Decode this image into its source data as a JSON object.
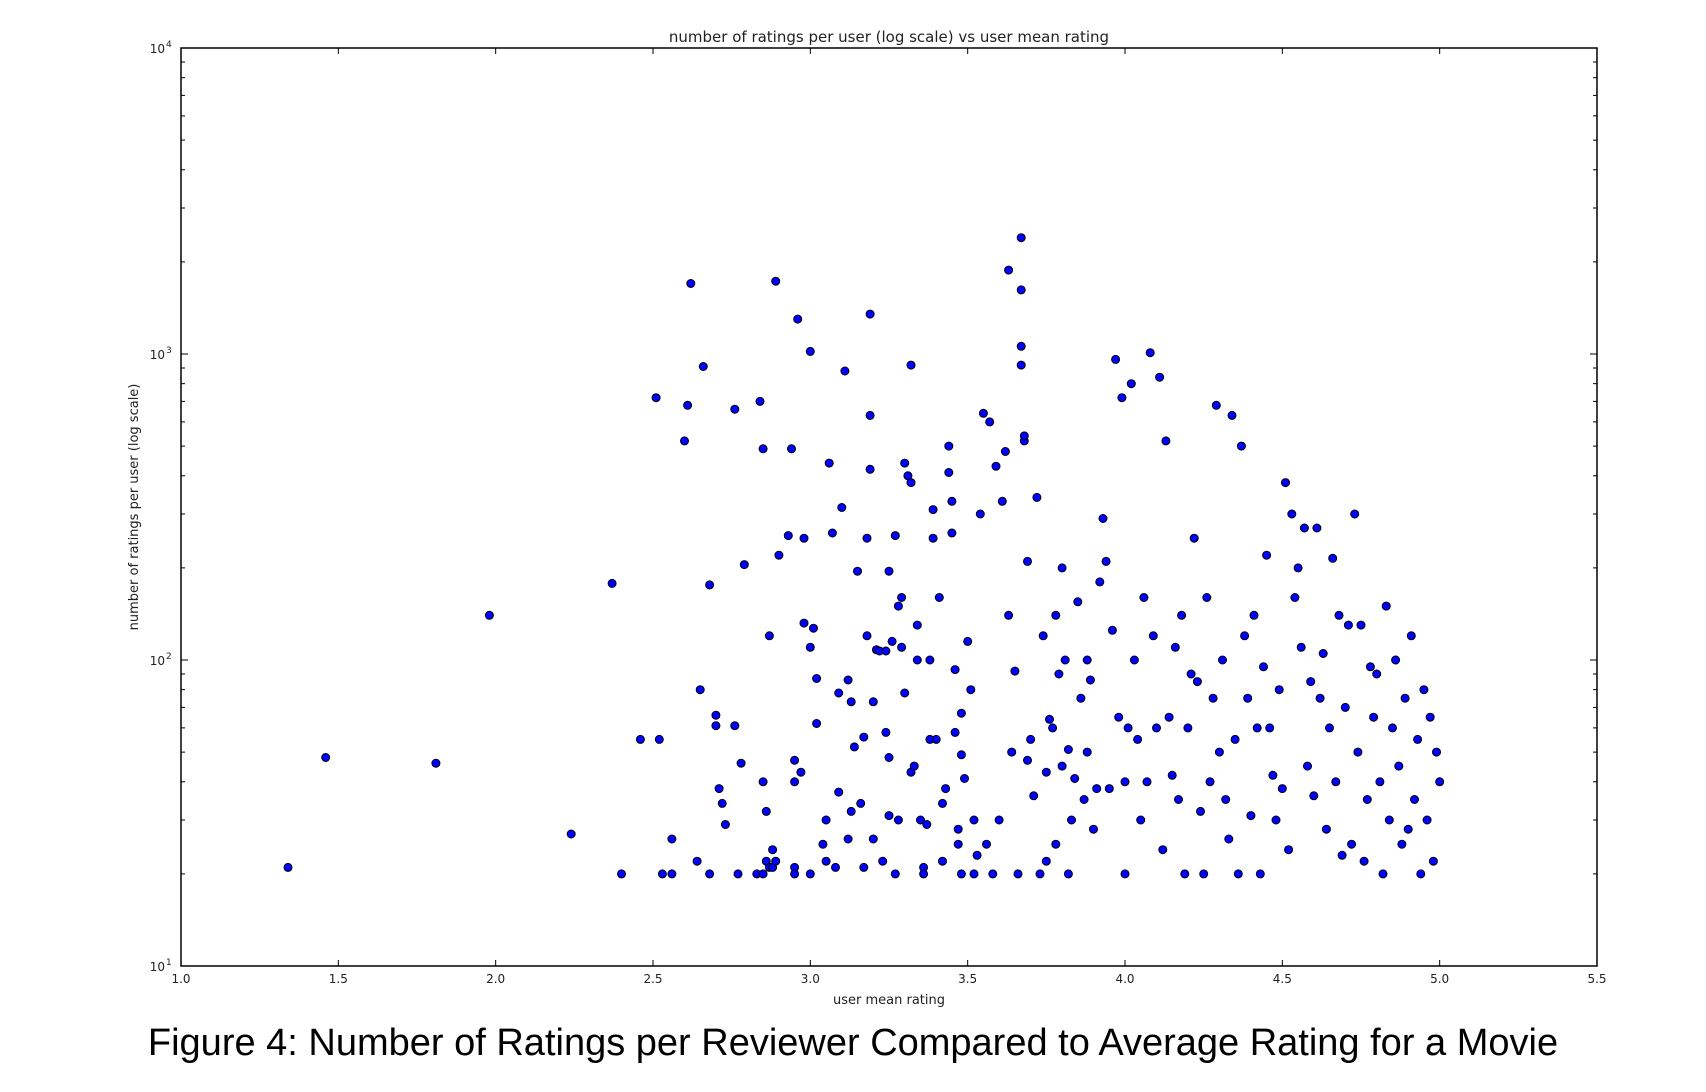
{
  "figure": {
    "caption": "Figure 4: Number of Ratings per Reviewer Compared to Average Rating for a Movie"
  },
  "colors": {
    "marker_fill": "#0000ff",
    "marker_edge": "#000000",
    "axes": "#000000",
    "background": "#ffffff"
  },
  "chart_data": {
    "type": "scatter",
    "title": "number of ratings per user (log scale) vs user mean rating",
    "xlabel": "user mean rating",
    "ylabel": "number of ratings per user (log scale)",
    "xlim": [
      1.0,
      5.5
    ],
    "ylim": [
      10,
      10000
    ],
    "yscale": "log",
    "grid": false,
    "legend": null,
    "x_ticks": [
      "1.0",
      "1.5",
      "2.0",
      "2.5",
      "3.0",
      "3.5",
      "4.0",
      "4.5",
      "5.0",
      "5.5"
    ],
    "y_ticks": [
      {
        "base": "10",
        "exp": "1",
        "value": 10
      },
      {
        "base": "10",
        "exp": "2",
        "value": 100
      },
      {
        "base": "10",
        "exp": "3",
        "value": 1000
      },
      {
        "base": "10",
        "exp": "4",
        "value": 10000
      }
    ],
    "points": [
      [
        1.34,
        21
      ],
      [
        1.46,
        48
      ],
      [
        1.81,
        46
      ],
      [
        1.98,
        140
      ],
      [
        2.24,
        27
      ],
      [
        2.37,
        178
      ],
      [
        2.4,
        20
      ],
      [
        2.46,
        55
      ],
      [
        2.52,
        55
      ],
      [
        2.53,
        20
      ],
      [
        2.56,
        20
      ],
      [
        2.56,
        26
      ],
      [
        2.6,
        520
      ],
      [
        2.51,
        720
      ],
      [
        2.61,
        680
      ],
      [
        2.62,
        1700
      ],
      [
        2.64,
        22
      ],
      [
        2.65,
        80
      ],
      [
        2.66,
        910
      ],
      [
        2.68,
        176
      ],
      [
        2.68,
        20
      ],
      [
        2.7,
        66
      ],
      [
        2.7,
        61
      ],
      [
        2.71,
        38
      ],
      [
        2.72,
        34
      ],
      [
        2.73,
        29
      ],
      [
        2.76,
        61
      ],
      [
        2.76,
        660
      ],
      [
        2.77,
        20
      ],
      [
        2.78,
        46
      ],
      [
        2.79,
        205
      ],
      [
        2.83,
        20
      ],
      [
        2.84,
        700
      ],
      [
        2.85,
        490
      ],
      [
        2.85,
        40
      ],
      [
        2.85,
        20
      ],
      [
        2.86,
        22
      ],
      [
        2.86,
        32
      ],
      [
        2.87,
        21
      ],
      [
        2.87,
        120
      ],
      [
        2.88,
        24
      ],
      [
        2.88,
        21
      ],
      [
        2.89,
        22
      ],
      [
        2.89,
        1730
      ],
      [
        2.9,
        220
      ],
      [
        2.93,
        255
      ],
      [
        2.94,
        490
      ],
      [
        2.95,
        21
      ],
      [
        2.95,
        47
      ],
      [
        2.95,
        40
      ],
      [
        2.95,
        20
      ],
      [
        2.96,
        1300
      ],
      [
        2.97,
        43
      ],
      [
        2.98,
        132
      ],
      [
        2.98,
        250
      ],
      [
        3.0,
        110
      ],
      [
        3.0,
        20
      ],
      [
        3.0,
        1020
      ],
      [
        3.01,
        127
      ],
      [
        3.02,
        62
      ],
      [
        3.02,
        87
      ],
      [
        3.04,
        25
      ],
      [
        3.05,
        30
      ],
      [
        3.05,
        22
      ],
      [
        3.06,
        440
      ],
      [
        3.07,
        260
      ],
      [
        3.08,
        21
      ],
      [
        3.09,
        78
      ],
      [
        3.09,
        37
      ],
      [
        3.1,
        315
      ],
      [
        3.11,
        880
      ],
      [
        3.12,
        26
      ],
      [
        3.12,
        86
      ],
      [
        3.13,
        73
      ],
      [
        3.13,
        32
      ],
      [
        3.14,
        52
      ],
      [
        3.15,
        195
      ],
      [
        3.16,
        34
      ],
      [
        3.17,
        21
      ],
      [
        3.17,
        56
      ],
      [
        3.18,
        120
      ],
      [
        3.18,
        250
      ],
      [
        3.19,
        420
      ],
      [
        3.19,
        1350
      ],
      [
        3.19,
        630
      ],
      [
        3.2,
        73
      ],
      [
        3.2,
        26
      ],
      [
        3.21,
        108
      ],
      [
        3.22,
        107
      ],
      [
        3.23,
        22
      ],
      [
        3.24,
        107
      ],
      [
        3.24,
        58
      ],
      [
        3.25,
        31
      ],
      [
        3.25,
        48
      ],
      [
        3.25,
        195
      ],
      [
        3.26,
        115
      ],
      [
        3.27,
        255
      ],
      [
        3.27,
        20
      ],
      [
        3.28,
        150
      ],
      [
        3.28,
        30
      ],
      [
        3.29,
        160
      ],
      [
        3.29,
        110
      ],
      [
        3.3,
        78
      ],
      [
        3.3,
        440
      ],
      [
        3.31,
        400
      ],
      [
        3.32,
        920
      ],
      [
        3.32,
        43
      ],
      [
        3.32,
        380
      ],
      [
        3.33,
        45
      ],
      [
        3.34,
        100
      ],
      [
        3.34,
        130
      ],
      [
        3.35,
        30
      ],
      [
        3.36,
        21
      ],
      [
        3.36,
        20
      ],
      [
        3.37,
        29
      ],
      [
        3.38,
        100
      ],
      [
        3.38,
        55
      ],
      [
        3.39,
        310
      ],
      [
        3.39,
        250
      ],
      [
        3.4,
        55
      ],
      [
        3.41,
        160
      ],
      [
        3.42,
        34
      ],
      [
        3.42,
        22
      ],
      [
        3.43,
        38
      ],
      [
        3.44,
        500
      ],
      [
        3.44,
        410
      ],
      [
        3.45,
        260
      ],
      [
        3.45,
        330
      ],
      [
        3.46,
        93
      ],
      [
        3.46,
        58
      ],
      [
        3.47,
        28
      ],
      [
        3.47,
        25
      ],
      [
        3.48,
        67
      ],
      [
        3.48,
        49
      ],
      [
        3.48,
        20
      ],
      [
        3.49,
        41
      ],
      [
        3.5,
        115
      ],
      [
        3.51,
        80
      ],
      [
        3.52,
        20
      ],
      [
        3.52,
        30
      ],
      [
        3.53,
        23
      ],
      [
        3.54,
        300
      ],
      [
        3.55,
        640
      ],
      [
        3.56,
        25
      ],
      [
        3.57,
        600
      ],
      [
        3.58,
        20
      ],
      [
        3.59,
        430
      ],
      [
        3.6,
        30
      ],
      [
        3.61,
        330
      ],
      [
        3.62,
        480
      ],
      [
        3.63,
        140
      ],
      [
        3.63,
        1880
      ],
      [
        3.64,
        50
      ],
      [
        3.65,
        92
      ],
      [
        3.66,
        20
      ],
      [
        3.67,
        2400
      ],
      [
        3.67,
        1620
      ],
      [
        3.67,
        1060
      ],
      [
        3.67,
        920
      ],
      [
        3.68,
        520
      ],
      [
        3.68,
        540
      ],
      [
        3.69,
        47
      ],
      [
        3.69,
        210
      ],
      [
        3.7,
        55
      ],
      [
        3.71,
        36
      ],
      [
        3.72,
        340
      ],
      [
        3.73,
        20
      ],
      [
        3.74,
        120
      ],
      [
        3.75,
        43
      ],
      [
        3.75,
        22
      ],
      [
        3.76,
        64
      ],
      [
        3.77,
        60
      ],
      [
        3.78,
        25
      ],
      [
        3.78,
        140
      ],
      [
        3.79,
        90
      ],
      [
        3.8,
        45
      ],
      [
        3.8,
        200
      ],
      [
        3.81,
        100
      ],
      [
        3.82,
        51
      ],
      [
        3.82,
        20
      ],
      [
        3.83,
        30
      ],
      [
        3.84,
        41
      ],
      [
        3.85,
        155
      ],
      [
        3.86,
        75
      ],
      [
        3.87,
        35
      ],
      [
        3.88,
        50
      ],
      [
        3.88,
        100
      ],
      [
        3.89,
        86
      ],
      [
        3.9,
        28
      ],
      [
        3.91,
        38
      ],
      [
        3.92,
        180
      ],
      [
        3.93,
        290
      ],
      [
        3.94,
        210
      ],
      [
        3.95,
        38
      ],
      [
        3.96,
        125
      ],
      [
        3.97,
        960
      ],
      [
        3.98,
        65
      ],
      [
        3.99,
        720
      ],
      [
        4.0,
        40
      ],
      [
        4.0,
        20
      ],
      [
        4.01,
        60
      ],
      [
        4.02,
        800
      ],
      [
        4.03,
        100
      ],
      [
        4.04,
        55
      ],
      [
        4.05,
        30
      ],
      [
        4.06,
        160
      ],
      [
        4.07,
        40
      ],
      [
        4.08,
        1010
      ],
      [
        4.09,
        120
      ],
      [
        4.1,
        60
      ],
      [
        4.11,
        840
      ],
      [
        4.12,
        24
      ],
      [
        4.13,
        520
      ],
      [
        4.14,
        65
      ],
      [
        4.15,
        42
      ],
      [
        4.16,
        110
      ],
      [
        4.17,
        35
      ],
      [
        4.18,
        140
      ],
      [
        4.19,
        20
      ],
      [
        4.2,
        60
      ],
      [
        4.21,
        90
      ],
      [
        4.22,
        250
      ],
      [
        4.23,
        85
      ],
      [
        4.24,
        32
      ],
      [
        4.25,
        20
      ],
      [
        4.26,
        160
      ],
      [
        4.27,
        40
      ],
      [
        4.28,
        75
      ],
      [
        4.29,
        680
      ],
      [
        4.3,
        50
      ],
      [
        4.31,
        100
      ],
      [
        4.32,
        35
      ],
      [
        4.33,
        26
      ],
      [
        4.34,
        630
      ],
      [
        4.35,
        55
      ],
      [
        4.36,
        20
      ],
      [
        4.37,
        500
      ],
      [
        4.38,
        120
      ],
      [
        4.39,
        75
      ],
      [
        4.4,
        31
      ],
      [
        4.41,
        140
      ],
      [
        4.42,
        60
      ],
      [
        4.43,
        20
      ],
      [
        4.44,
        95
      ],
      [
        4.45,
        220
      ],
      [
        4.46,
        60
      ],
      [
        4.47,
        42
      ],
      [
        4.48,
        30
      ],
      [
        4.49,
        80
      ],
      [
        4.5,
        38
      ],
      [
        4.51,
        380
      ],
      [
        4.52,
        24
      ],
      [
        4.53,
        300
      ],
      [
        4.54,
        160
      ],
      [
        4.55,
        200
      ],
      [
        4.56,
        110
      ],
      [
        4.57,
        270
      ],
      [
        4.58,
        45
      ],
      [
        4.59,
        85
      ],
      [
        4.6,
        36
      ],
      [
        4.61,
        270
      ],
      [
        4.62,
        75
      ],
      [
        4.63,
        105
      ],
      [
        4.64,
        28
      ],
      [
        4.65,
        60
      ],
      [
        4.66,
        215
      ],
      [
        4.67,
        40
      ],
      [
        4.68,
        140
      ],
      [
        4.69,
        23
      ],
      [
        4.7,
        70
      ],
      [
        4.71,
        130
      ],
      [
        4.72,
        25
      ],
      [
        4.73,
        300
      ],
      [
        4.74,
        50
      ],
      [
        4.75,
        130
      ],
      [
        4.76,
        22
      ],
      [
        4.77,
        35
      ],
      [
        4.78,
        95
      ],
      [
        4.79,
        65
      ],
      [
        4.8,
        90
      ],
      [
        4.81,
        40
      ],
      [
        4.82,
        20
      ],
      [
        4.83,
        150
      ],
      [
        4.84,
        30
      ],
      [
        4.85,
        60
      ],
      [
        4.86,
        100
      ],
      [
        4.87,
        45
      ],
      [
        4.88,
        25
      ],
      [
        4.89,
        75
      ],
      [
        4.9,
        28
      ],
      [
        4.91,
        120
      ],
      [
        4.92,
        35
      ],
      [
        4.93,
        55
      ],
      [
        4.94,
        20
      ],
      [
        4.95,
        80
      ],
      [
        4.96,
        30
      ],
      [
        4.97,
        65
      ],
      [
        4.98,
        22
      ],
      [
        4.99,
        50
      ],
      [
        5.0,
        40
      ]
    ]
  }
}
